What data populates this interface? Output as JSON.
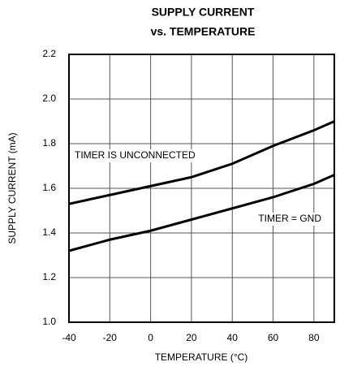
{
  "chart_data": {
    "type": "line",
    "title": [
      "SUPPLY CURRENT",
      "vs. TEMPERATURE"
    ],
    "x_label": "TEMPERATURE (°C)",
    "y_label": "SUPPLY CURRENT (mA)",
    "x": [
      -40,
      -20,
      0,
      20,
      40,
      60,
      80,
      90
    ],
    "series": [
      {
        "name": "TIMER IS UNCONNECTED",
        "color": "#000000",
        "values": [
          1.53,
          1.57,
          1.61,
          1.65,
          1.71,
          1.79,
          1.86,
          1.9
        ]
      },
      {
        "name": "TIMER = GND",
        "color": "#000000",
        "values": [
          1.32,
          1.37,
          1.41,
          1.46,
          1.51,
          1.56,
          1.62,
          1.66
        ]
      }
    ],
    "xlim": [
      -40,
      90
    ],
    "xticks": [
      -40,
      -20,
      0,
      20,
      40,
      60,
      80
    ],
    "ylim": [
      1.0,
      2.2
    ],
    "yticks": [
      {
        "value": 1.0,
        "label": "1.0"
      },
      1.2,
      1.4,
      1.6,
      1.8,
      {
        "value": 2.0,
        "label": "2.0"
      },
      2.2
    ],
    "grid": true
  }
}
